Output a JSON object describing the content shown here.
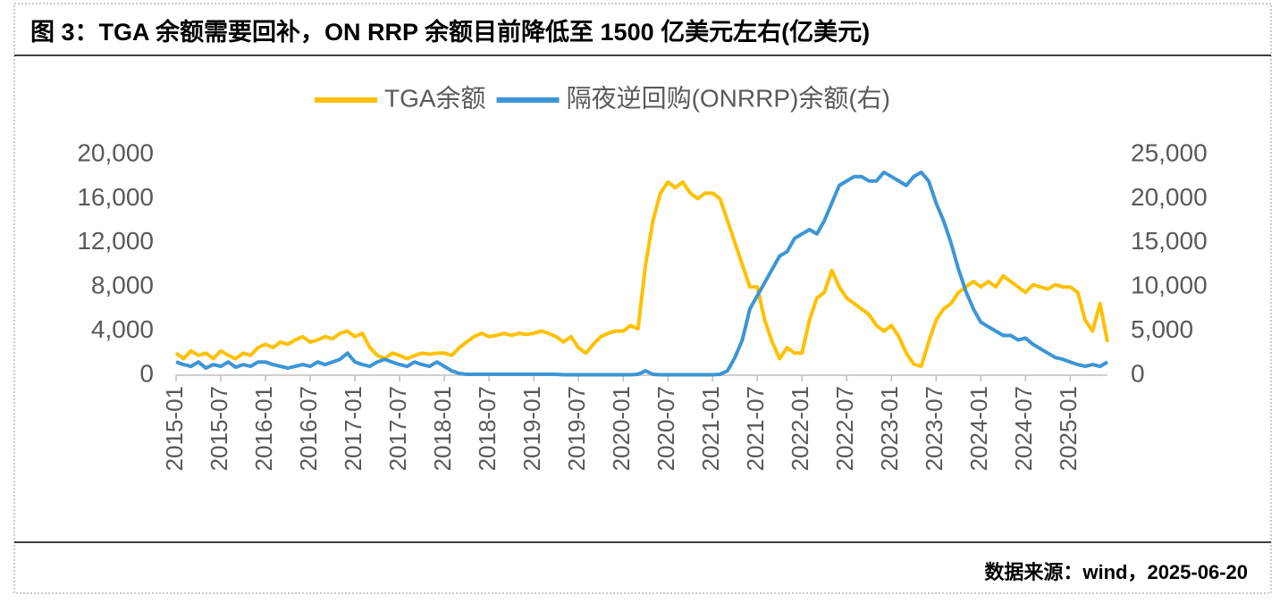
{
  "chart_data": {
    "type": "line",
    "title": "图 3：TGA 余额需要回补，ON RRP 余额目前降低至 1500 亿美元左右(亿美元)",
    "source": "数据来源：wind，2025-06-20",
    "categories": [
      "2015-01",
      null,
      null,
      null,
      null,
      null,
      "2015-07",
      null,
      null,
      null,
      null,
      null,
      "2016-01",
      null,
      null,
      null,
      null,
      null,
      "2016-07",
      null,
      null,
      null,
      null,
      null,
      "2017-01",
      null,
      null,
      null,
      null,
      null,
      "2017-07",
      null,
      null,
      null,
      null,
      null,
      "2018-01",
      null,
      null,
      null,
      null,
      null,
      "2018-07",
      null,
      null,
      null,
      null,
      null,
      "2019-01",
      null,
      null,
      null,
      null,
      null,
      "2019-07",
      null,
      null,
      null,
      null,
      null,
      "2020-01",
      null,
      null,
      null,
      null,
      null,
      "2020-07",
      null,
      null,
      null,
      null,
      null,
      "2021-01",
      null,
      null,
      null,
      null,
      null,
      "2021-07",
      null,
      null,
      null,
      null,
      null,
      "2022-01",
      null,
      null,
      null,
      null,
      null,
      "2022-07",
      null,
      null,
      null,
      null,
      null,
      "2023-01",
      null,
      null,
      null,
      null,
      null,
      "2023-07",
      null,
      null,
      null,
      null,
      null,
      "2024-01",
      null,
      null,
      null,
      null,
      null,
      "2024-07",
      null,
      null,
      null,
      null,
      null,
      "2025-01",
      null,
      null,
      null,
      null,
      null
    ],
    "series": [
      {
        "name": "TGA余额",
        "color": "#ffc000",
        "axis": "y",
        "values": [
          2000,
          1500,
          2200,
          1800,
          2000,
          1500,
          2200,
          1800,
          1500,
          2000,
          1800,
          2500,
          2800,
          2500,
          3000,
          2800,
          3200,
          3500,
          3000,
          3200,
          3500,
          3300,
          3800,
          4000,
          3500,
          3800,
          2500,
          1800,
          1500,
          2000,
          1800,
          1500,
          1800,
          2000,
          1900,
          2000,
          2000,
          1800,
          2500,
          3000,
          3500,
          3800,
          3500,
          3600,
          3800,
          3600,
          3800,
          3700,
          3800,
          4000,
          3800,
          3500,
          3000,
          3500,
          2500,
          2000,
          2800,
          3500,
          3800,
          4000,
          4000,
          4500,
          4200,
          10000,
          14000,
          16500,
          17500,
          17000,
          17500,
          16500,
          16000,
          16500,
          16500,
          16000,
          14000,
          12000,
          10000,
          8000,
          8000,
          5000,
          3000,
          1500,
          2500,
          2000,
          2000,
          5000,
          7000,
          7500,
          9500,
          8000,
          7000,
          6500,
          6000,
          5500,
          4500,
          4000,
          4500,
          3500,
          2000,
          1000,
          800,
          3000,
          5000,
          6000,
          6500,
          7500,
          8000,
          8500,
          8000,
          8500,
          8000,
          9000,
          8500,
          8000,
          7500,
          8200,
          8000,
          7800,
          8200,
          8000,
          8000,
          7500,
          5000,
          4000,
          6500,
          3000
        ]
      },
      {
        "name": "隔夜逆回购(ONRRP)余额(右)",
        "color": "#3d95d6",
        "axis": "y2",
        "values": [
          1500,
          1200,
          1000,
          1500,
          800,
          1200,
          1000,
          1500,
          900,
          1200,
          1000,
          1500,
          1500,
          1200,
          1000,
          800,
          1000,
          1200,
          1000,
          1500,
          1200,
          1500,
          1800,
          2500,
          1500,
          1200,
          1000,
          1500,
          1800,
          1500,
          1200,
          1000,
          1500,
          1200,
          1000,
          1500,
          1000,
          500,
          200,
          100,
          100,
          100,
          100,
          100,
          100,
          100,
          100,
          100,
          100,
          100,
          100,
          100,
          50,
          50,
          50,
          50,
          50,
          50,
          50,
          50,
          50,
          50,
          100,
          500,
          100,
          50,
          50,
          50,
          50,
          50,
          50,
          50,
          50,
          100,
          500,
          2000,
          4000,
          7500,
          9000,
          10500,
          12000,
          13500,
          14000,
          15500,
          16000,
          16500,
          16000,
          17500,
          19500,
          21500,
          22000,
          22500,
          22500,
          22000,
          22000,
          23000,
          22500,
          22000,
          21500,
          22500,
          23000,
          22000,
          19500,
          17500,
          15000,
          12000,
          9500,
          7500,
          6000,
          5500,
          5000,
          4500,
          4500,
          4000,
          4200,
          3500,
          3000,
          2500,
          2000,
          1800,
          1500,
          1200,
          1000,
          1200,
          1000,
          1500
        ]
      }
    ],
    "ylim": [
      0,
      20000
    ],
    "yticks": [
      0,
      {
        "value": 4000,
        "label": "4,000"
      },
      {
        "value": 8000,
        "label": "8,000"
      },
      {
        "value": 12000,
        "label": "12,000"
      },
      {
        "value": 16000,
        "label": "16,000"
      },
      {
        "value": 20000,
        "label": "20,000"
      }
    ],
    "y2lim": [
      0,
      25000
    ],
    "y2ticks": [
      0,
      {
        "value": 5000,
        "label": "5,000"
      },
      {
        "value": 10000,
        "label": "10,000"
      },
      {
        "value": 15000,
        "label": "15,000"
      },
      {
        "value": 20000,
        "label": "20,000"
      },
      {
        "value": 25000,
        "label": "25,000"
      }
    ],
    "legend": "top",
    "grid": false
  }
}
